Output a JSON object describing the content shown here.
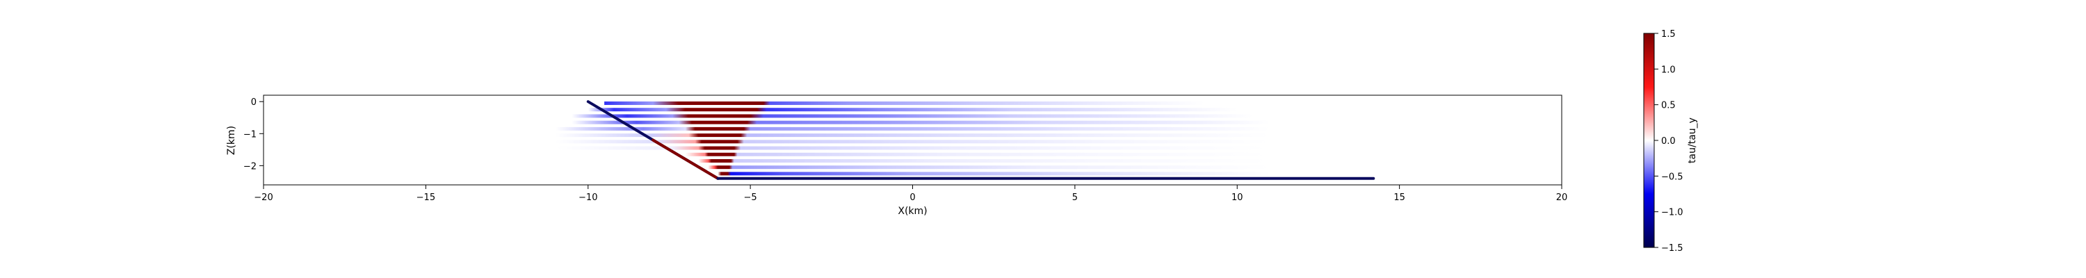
{
  "chart_data": {
    "type": "heatmap",
    "title": "",
    "xlabel": "X(km)",
    "ylabel": "Z(km)",
    "xlim": [
      -20,
      20
    ],
    "ylim": [
      -2.6,
      0.2
    ],
    "xticks": [
      -20,
      -15,
      -10,
      -5,
      0,
      5,
      10,
      15,
      20
    ],
    "xtick_labels": [
      "−20",
      "−15",
      "−10",
      "−5",
      "0",
      "5",
      "10",
      "15",
      "20"
    ],
    "yticks": [
      0,
      -1,
      -2
    ],
    "ytick_labels": [
      "0",
      "−1",
      "−2"
    ],
    "grid": false,
    "colormap": "seismic",
    "colorbar": {
      "label": "tau/tau_y",
      "range": [
        -1.5,
        1.5
      ],
      "ticks": [
        1.5,
        1.0,
        0.5,
        0.0,
        -0.5,
        -1.0,
        -1.5
      ],
      "tick_labels": [
        "1.5",
        "1.0",
        "0.5",
        "0.0",
        "−0.5",
        "−1.0",
        "−1.5"
      ]
    },
    "fault": {
      "dip_segment": {
        "x": [
          -10,
          -6
        ],
        "z": [
          0,
          -2.4
        ]
      },
      "flat_segment": {
        "x": [
          -6,
          14.2
        ],
        "z": [
          -2.4,
          -2.4
        ]
      },
      "color": "#0b0b5e"
    },
    "rows": [
      {
        "z": -0.05,
        "values": [
          [
            -9.5,
            -0.6
          ],
          [
            -8.0,
            -0.3
          ],
          [
            -7.2,
            1.5
          ],
          [
            -4.6,
            1.5
          ],
          [
            -4.4,
            -0.5
          ],
          [
            -2.0,
            -0.3
          ],
          [
            2.0,
            -0.15
          ],
          [
            6.0,
            -0.05
          ],
          [
            9.0,
            0
          ]
        ]
      },
      {
        "z": -0.25,
        "values": [
          [
            -10.0,
            0
          ],
          [
            -9.2,
            -0.6
          ],
          [
            -7.6,
            -0.3
          ],
          [
            -7.0,
            1.5
          ],
          [
            -4.8,
            1.5
          ],
          [
            -4.5,
            -0.6
          ],
          [
            -1.0,
            -0.35
          ],
          [
            3.0,
            -0.15
          ],
          [
            7.5,
            -0.05
          ],
          [
            10.0,
            0
          ]
        ]
      },
      {
        "z": -0.45,
        "values": [
          [
            -10.5,
            0
          ],
          [
            -8.8,
            -0.6
          ],
          [
            -7.4,
            -0.3
          ],
          [
            -6.9,
            1.5
          ],
          [
            -5.0,
            1.5
          ],
          [
            -4.6,
            -0.5
          ],
          [
            -1.0,
            -0.35
          ],
          [
            3.0,
            -0.15
          ],
          [
            8.0,
            -0.05
          ],
          [
            10.5,
            0
          ]
        ]
      },
      {
        "z": -0.65,
        "values": [
          [
            -10.5,
            0
          ],
          [
            -8.5,
            -0.5
          ],
          [
            -7.2,
            -0.2
          ],
          [
            -6.8,
            1.5
          ],
          [
            -5.1,
            1.5
          ],
          [
            -4.8,
            -0.4
          ],
          [
            -1.0,
            -0.3
          ],
          [
            4.0,
            -0.12
          ],
          [
            9.0,
            -0.04
          ],
          [
            11.0,
            0
          ]
        ]
      },
      {
        "z": -0.85,
        "values": [
          [
            -11.0,
            0
          ],
          [
            -8.3,
            -0.35
          ],
          [
            -7.0,
            -0.1
          ],
          [
            -6.7,
            1.5
          ],
          [
            -5.2,
            1.5
          ],
          [
            -5.0,
            -0.3
          ],
          [
            0.0,
            -0.2
          ],
          [
            5.0,
            -0.08
          ],
          [
            9.5,
            -0.02
          ],
          [
            11.0,
            0
          ]
        ]
      },
      {
        "z": -1.05,
        "values": [
          [
            -11.0,
            0
          ],
          [
            -8.0,
            -0.15
          ],
          [
            -6.9,
            0.2
          ],
          [
            -6.6,
            1.5
          ],
          [
            -5.3,
            1.5
          ],
          [
            -5.1,
            -0.2
          ],
          [
            1.0,
            -0.1
          ],
          [
            6.0,
            -0.04
          ],
          [
            11.0,
            0
          ]
        ]
      },
      {
        "z": -1.25,
        "values": [
          [
            -11.0,
            0
          ],
          [
            -7.8,
            -0.1
          ],
          [
            -6.7,
            0.3
          ],
          [
            -6.5,
            1.5
          ],
          [
            -5.4,
            1.5
          ],
          [
            -5.2,
            -0.15
          ],
          [
            1.0,
            -0.08
          ],
          [
            6.0,
            -0.03
          ],
          [
            11.0,
            0
          ]
        ]
      },
      {
        "z": -1.45,
        "values": [
          [
            -11.0,
            0
          ],
          [
            -7.4,
            -0.05
          ],
          [
            -6.6,
            0.3
          ],
          [
            -6.4,
            1.5
          ],
          [
            -5.5,
            1.5
          ],
          [
            -5.3,
            -0.15
          ],
          [
            1.0,
            -0.06
          ],
          [
            6.0,
            -0.02
          ],
          [
            11.0,
            0
          ]
        ]
      },
      {
        "z": -1.65,
        "values": [
          [
            -11.0,
            0
          ],
          [
            -7.0,
            0
          ],
          [
            -6.4,
            0.4
          ],
          [
            -6.3,
            1.5
          ],
          [
            -5.5,
            1.5
          ],
          [
            -5.4,
            -0.15
          ],
          [
            1.0,
            -0.05
          ],
          [
            6.0,
            -0.02
          ],
          [
            11.0,
            0
          ]
        ]
      },
      {
        "z": -1.85,
        "values": [
          [
            -11.0,
            0
          ],
          [
            -6.6,
            0
          ],
          [
            -6.3,
            0.5
          ],
          [
            -6.2,
            1.5
          ],
          [
            -5.6,
            1.5
          ],
          [
            -5.5,
            -0.15
          ],
          [
            1.0,
            -0.05
          ],
          [
            6.0,
            -0.02
          ],
          [
            11.0,
            0
          ]
        ]
      },
      {
        "z": -2.05,
        "values": [
          [
            -11.0,
            0
          ],
          [
            -6.3,
            0
          ],
          [
            -6.1,
            0.6
          ],
          [
            -6.0,
            1.5
          ],
          [
            -5.65,
            1.5
          ],
          [
            -5.55,
            -0.3
          ],
          [
            -1.0,
            -0.15
          ],
          [
            4.0,
            -0.05
          ],
          [
            11.0,
            0
          ]
        ]
      },
      {
        "z": -2.25,
        "values": [
          [
            -11.0,
            0
          ],
          [
            -6.0,
            0
          ],
          [
            -5.9,
            1.5
          ],
          [
            -5.7,
            1.5
          ],
          [
            -5.6,
            -0.7
          ],
          [
            -4.0,
            -0.5
          ],
          [
            0.0,
            -0.25
          ],
          [
            5.0,
            -0.1
          ],
          [
            11.0,
            0
          ]
        ]
      }
    ],
    "fault_stress": {
      "x": [
        -10,
        -6
      ],
      "z": [
        0,
        -2.4
      ],
      "value": 1.5,
      "from_fraction": 0.5
    }
  }
}
